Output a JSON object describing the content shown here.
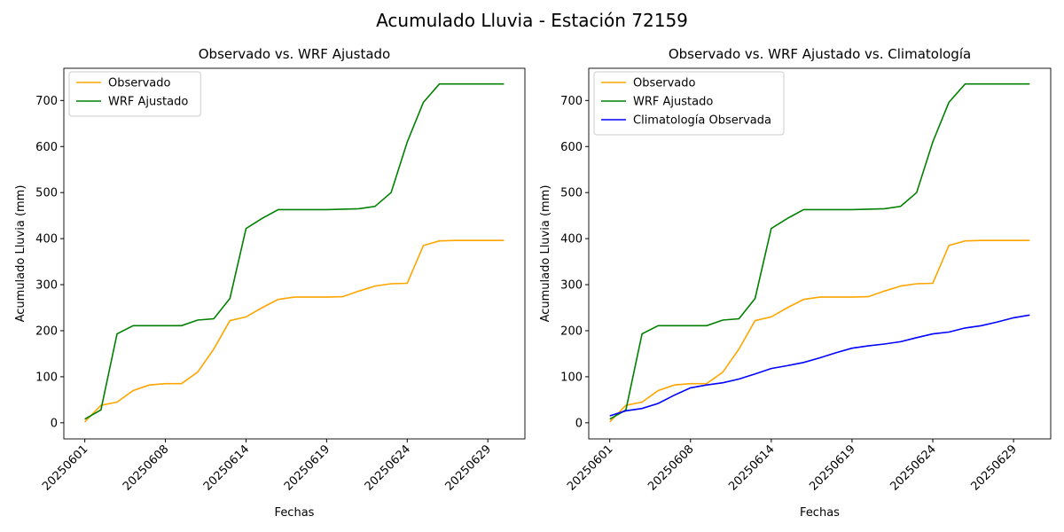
{
  "title": "Acumulado Lluvia - Estación 72159",
  "chart_data": [
    {
      "type": "line",
      "title": "Observado vs. WRF Ajustado",
      "xlabel": "Fechas",
      "ylabel": "Acumulado Lluvia (mm)",
      "categories": [
        "20250601",
        null,
        null,
        null,
        null,
        "20250608",
        null,
        null,
        null,
        null,
        "20250614",
        null,
        null,
        null,
        null,
        "20250619",
        null,
        null,
        null,
        null,
        "20250624",
        null,
        null,
        null,
        null,
        "20250629",
        null
      ],
      "series": [
        {
          "name": "Observado",
          "color": "#ffa500",
          "values": [
            2,
            38,
            45,
            70,
            82,
            85,
            85,
            110,
            160,
            222,
            230,
            250,
            268,
            273,
            273,
            273,
            274,
            286,
            297,
            302,
            303,
            385,
            395,
            396,
            396,
            396,
            396
          ]
        },
        {
          "name": "WRF Ajustado",
          "color": "#008000",
          "values": [
            8,
            28,
            193,
            211,
            211,
            211,
            211,
            223,
            226,
            270,
            422,
            444,
            463,
            463,
            463,
            463,
            464,
            465,
            470,
            500,
            610,
            696,
            736,
            736,
            736,
            736,
            736
          ]
        }
      ],
      "xlim": [
        -1.3,
        27.3
      ],
      "ylim": [
        -35,
        770
      ],
      "yticks": [
        0,
        100,
        200,
        300,
        400,
        500,
        600,
        700
      ],
      "legend": "upper left"
    },
    {
      "type": "line",
      "title": "Observado vs. WRF Ajustado vs. Climatología",
      "xlabel": "Fechas",
      "ylabel": "Acumulado Lluvia (mm)",
      "categories": [
        "20250601",
        null,
        null,
        null,
        null,
        "20250608",
        null,
        null,
        null,
        null,
        "20250614",
        null,
        null,
        null,
        null,
        "20250619",
        null,
        null,
        null,
        null,
        "20250624",
        null,
        null,
        null,
        null,
        "20250629",
        null
      ],
      "series": [
        {
          "name": "Observado",
          "color": "#ffa500",
          "values": [
            2,
            38,
            45,
            70,
            82,
            85,
            85,
            110,
            160,
            222,
            230,
            250,
            268,
            273,
            273,
            273,
            274,
            286,
            297,
            302,
            303,
            385,
            395,
            396,
            396,
            396,
            396
          ]
        },
        {
          "name": "WRF Ajustado",
          "color": "#008000",
          "values": [
            8,
            28,
            193,
            211,
            211,
            211,
            211,
            223,
            226,
            270,
            422,
            444,
            463,
            463,
            463,
            463,
            464,
            465,
            470,
            500,
            610,
            696,
            736,
            736,
            736,
            736,
            736
          ]
        },
        {
          "name": "Climatología Observada",
          "color": "#0000ff",
          "values": [
            15,
            26,
            31,
            42,
            60,
            76,
            82,
            87,
            95,
            106,
            118,
            124,
            131,
            141,
            152,
            162,
            167,
            171,
            176,
            185,
            193,
            197,
            206,
            211,
            219,
            228,
            234
          ]
        }
      ],
      "xlim": [
        -1.3,
        27.3
      ],
      "ylim": [
        -35,
        770
      ],
      "yticks": [
        0,
        100,
        200,
        300,
        400,
        500,
        600,
        700
      ],
      "legend": "upper left"
    }
  ]
}
